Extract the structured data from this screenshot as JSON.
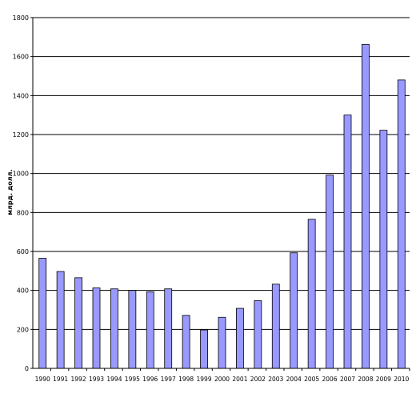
{
  "chart_data": {
    "type": "bar",
    "ylabel": "млрд. долл.",
    "ylim": [
      0,
      1800
    ],
    "yticks": [
      0,
      200,
      400,
      600,
      800,
      1000,
      1200,
      1400,
      1600,
      1800
    ],
    "categories": [
      "1990",
      "1991",
      "1992",
      "1993",
      "1994",
      "1995",
      "1996",
      "1997",
      "1998",
      "1999",
      "2000",
      "2001",
      "2002",
      "2003",
      "2004",
      "2005",
      "2006",
      "2007",
      "2008",
      "2009",
      "2010"
    ],
    "values": [
      565,
      497,
      465,
      413,
      408,
      400,
      393,
      408,
      272,
      197,
      262,
      308,
      348,
      432,
      593,
      765,
      992,
      1300,
      1663,
      1222,
      1480
    ],
    "bar_color": "#9999ff",
    "bar_edge": "#000000",
    "grid": true
  }
}
